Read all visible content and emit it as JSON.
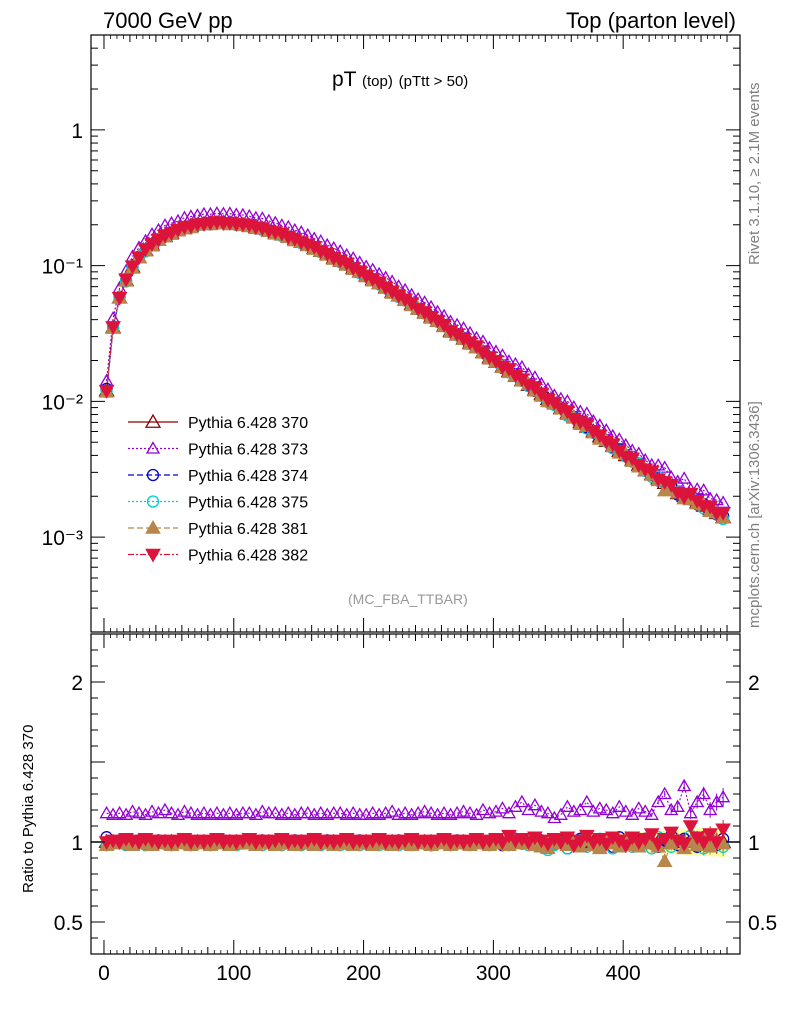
{
  "header": {
    "left": "7000 GeV pp",
    "right": "Top (parton level)"
  },
  "side_text": {
    "rivet": "Rivet 3.1.10, ≥ 2.1M events",
    "mcplots": "mcplots.cern.ch [arXiv:1306.3436]"
  },
  "plot_title": {
    "main": "pT",
    "sub1": "(top)",
    "sub2": "(pTtt > 50)"
  },
  "analysis_label": "(MC_FBA_TTBAR)",
  "ratio_ylabel": "Ratio to Pythia 6.428 370",
  "colors": {
    "s370": "#8b0000",
    "s373": "#9400d3",
    "s374": "#0000cd",
    "s375": "#00ced1",
    "s381": "#b8864b",
    "s382": "#dc143c",
    "band": "#ffff99"
  },
  "chart_data": [
    {
      "type": "scatter",
      "scale": "log-y",
      "xlim": [
        -10,
        490
      ],
      "ylim": [
        0.0002,
        5
      ],
      "yticks": [
        "1",
        "10⁻¹",
        "10⁻²",
        "10⁻³"
      ],
      "legend_position": "center-left",
      "series": [
        {
          "name": "Pythia 6.428 370",
          "marker": "open-triangle-up",
          "line": "solid"
        },
        {
          "name": "Pythia 6.428 373",
          "marker": "open-triangle-up",
          "line": "dotted"
        },
        {
          "name": "Pythia 6.428 374",
          "marker": "open-circle",
          "line": "dashed"
        },
        {
          "name": "Pythia 6.428 375",
          "marker": "open-circle",
          "line": "dotted"
        },
        {
          "name": "Pythia 6.428 381",
          "marker": "filled-triangle-up",
          "line": "dashed"
        },
        {
          "name": "Pythia 6.428 382",
          "marker": "filled-triangle-down",
          "line": "dashdot"
        }
      ],
      "x": [
        2,
        7,
        12,
        17,
        22,
        27,
        32,
        37,
        42,
        47,
        52,
        57,
        62,
        67,
        72,
        77,
        82,
        87,
        92,
        97,
        102,
        107,
        112,
        117,
        122,
        127,
        132,
        137,
        142,
        147,
        152,
        157,
        162,
        167,
        172,
        177,
        182,
        187,
        192,
        197,
        202,
        207,
        212,
        217,
        222,
        227,
        232,
        237,
        242,
        247,
        252,
        257,
        262,
        267,
        272,
        277,
        282,
        287,
        292,
        297,
        302,
        307,
        312,
        317,
        322,
        327,
        332,
        337,
        342,
        347,
        352,
        357,
        362,
        367,
        372,
        377,
        382,
        387,
        392,
        397,
        402,
        407,
        412,
        417,
        422,
        427,
        432,
        437,
        442,
        447,
        452,
        457,
        462,
        467,
        472,
        477
      ],
      "reference_values": [
        0.012,
        0.035,
        0.058,
        0.078,
        0.098,
        0.115,
        0.13,
        0.143,
        0.155,
        0.165,
        0.174,
        0.182,
        0.189,
        0.195,
        0.2,
        0.203,
        0.205,
        0.206,
        0.206,
        0.205,
        0.203,
        0.2,
        0.196,
        0.192,
        0.187,
        0.181,
        0.175,
        0.169,
        0.163,
        0.156,
        0.149,
        0.142,
        0.135,
        0.128,
        0.121,
        0.114,
        0.108,
        0.102,
        0.096,
        0.09,
        0.084,
        0.079,
        0.074,
        0.069,
        0.064,
        0.06,
        0.056,
        0.052,
        0.048,
        0.045,
        0.042,
        0.039,
        0.036,
        0.033,
        0.031,
        0.029,
        0.027,
        0.025,
        0.023,
        0.021,
        0.0195,
        0.018,
        0.0167,
        0.0154,
        0.0143,
        0.0132,
        0.0122,
        0.0113,
        0.0104,
        0.0096,
        0.0089,
        0.0082,
        0.0076,
        0.007,
        0.0065,
        0.006,
        0.0055,
        0.0051,
        0.0047,
        0.0043,
        0.004,
        0.0037,
        0.0034,
        0.0031,
        0.0029,
        0.0027,
        0.0025,
        0.0023,
        0.0021,
        0.002,
        0.0019,
        0.0018,
        0.0017,
        0.0016,
        0.0015,
        0.0014
      ]
    },
    {
      "type": "scatter",
      "ylabel": "Ratio to Pythia 6.428 370",
      "xlim": [
        -10,
        490
      ],
      "ylim": [
        0.3,
        2.3
      ],
      "xticks": [
        "0",
        "100",
        "200",
        "300",
        "400"
      ],
      "yticks": [
        "0.5",
        "1",
        "2"
      ],
      "reference_line": 1,
      "ratio_series": {
        "Pythia 6.428 373": [
          1.18,
          1.17,
          1.18,
          1.17,
          1.19,
          1.18,
          1.17,
          1.19,
          1.18,
          1.2,
          1.18,
          1.17,
          1.19,
          1.18,
          1.17,
          1.18,
          1.17,
          1.18,
          1.17,
          1.18,
          1.17,
          1.18,
          1.18,
          1.17,
          1.19,
          1.18,
          1.18,
          1.17,
          1.18,
          1.17,
          1.18,
          1.18,
          1.17,
          1.18,
          1.17,
          1.18,
          1.18,
          1.17,
          1.18,
          1.17,
          1.17,
          1.18,
          1.17,
          1.18,
          1.19,
          1.17,
          1.18,
          1.17,
          1.18,
          1.19,
          1.18,
          1.17,
          1.18,
          1.17,
          1.18,
          1.19,
          1.18,
          1.17,
          1.2,
          1.18,
          1.19,
          1.21,
          1.18,
          1.22,
          1.25,
          1.2,
          1.23,
          1.19,
          1.18,
          1.15,
          1.17,
          1.22,
          1.19,
          1.2,
          1.25,
          1.19,
          1.21,
          1.2,
          1.18,
          1.22,
          1.19,
          1.17,
          1.21,
          1.19,
          1.17,
          1.25,
          1.3,
          1.2,
          1.22,
          1.35,
          1.18,
          1.25,
          1.3,
          1.2,
          1.25,
          1.28
        ],
        "Pythia 6.428 374": [
          1.03,
          1.0,
          1.01,
          0.99,
          1.0,
          1.01,
          0.99,
          1.0,
          1.01,
          0.99,
          1.0,
          1.0,
          1.01,
          0.99,
          1.0,
          1.0,
          0.99,
          1.0,
          1.01,
          1.0,
          0.99,
          1.0,
          1.0,
          0.99,
          1.01,
          1.0,
          0.99,
          1.0,
          1.0,
          1.01,
          0.99,
          1.0,
          1.0,
          0.99,
          1.01,
          1.0,
          1.0,
          0.99,
          1.0,
          1.01,
          0.99,
          1.0,
          1.0,
          0.99,
          1.0,
          1.01,
          0.99,
          1.0,
          1.0,
          0.99,
          0.98,
          1.0,
          1.0,
          0.99,
          1.01,
          1.0,
          0.99,
          1.0,
          1.0,
          0.99,
          1.01,
          0.98,
          1.0,
          1.02,
          0.99,
          1.0,
          0.98,
          1.01,
          0.97,
          0.99,
          1.01,
          0.96,
          1.0,
          1.02,
          0.99,
          0.98,
          1.01,
          1.0,
          0.97,
          1.03,
          0.99,
          1.0,
          0.98,
          1.02,
          0.99,
          0.97,
          1.01,
          1.04,
          0.98,
          1.02,
          1.0,
          0.97,
          1.03,
          0.99,
          0.98,
          1.02
        ],
        "Pythia 6.428 375": [
          0.98,
          0.99,
          1.0,
          0.98,
          0.99,
          1.0,
          0.98,
          0.99,
          1.0,
          0.99,
          0.98,
          1.0,
          0.99,
          0.98,
          0.99,
          1.0,
          0.98,
          0.99,
          1.0,
          0.99,
          0.98,
          0.99,
          1.0,
          0.99,
          0.98,
          1.0,
          0.99,
          0.98,
          0.99,
          1.0,
          0.98,
          0.99,
          0.99,
          0.98,
          1.0,
          0.99,
          0.98,
          0.99,
          1.0,
          0.98,
          0.99,
          0.99,
          0.98,
          1.0,
          0.99,
          0.98,
          0.99,
          0.98,
          1.0,
          0.99,
          0.98,
          0.99,
          1.0,
          0.98,
          0.99,
          0.99,
          0.98,
          1.0,
          0.99,
          0.98,
          1.0,
          0.99,
          0.98,
          1.0,
          0.99,
          0.98,
          1.0,
          0.97,
          0.95,
          0.98,
          1.0,
          0.96,
          0.99,
          1.01,
          0.97,
          0.98,
          1.02,
          0.99,
          0.96,
          1.01,
          0.98,
          0.97,
          1.02,
          0.99,
          0.96,
          1.03,
          1.0,
          0.97,
          1.01,
          0.99,
          1.04,
          0.98,
          0.96,
          1.02,
          0.99,
          0.97
        ],
        "Pythia 6.428 381": [
          0.98,
          0.99,
          1.0,
          0.99,
          0.98,
          1.0,
          0.99,
          0.98,
          1.0,
          0.99,
          0.98,
          1.0,
          0.99,
          0.98,
          1.0,
          0.99,
          0.98,
          1.0,
          0.99,
          0.98,
          1.0,
          0.99,
          0.99,
          0.98,
          1.0,
          0.99,
          0.98,
          1.0,
          0.99,
          0.98,
          1.0,
          0.99,
          0.98,
          1.0,
          0.99,
          0.98,
          1.0,
          0.99,
          0.98,
          1.0,
          0.99,
          0.98,
          1.0,
          0.99,
          0.98,
          1.0,
          0.99,
          0.98,
          1.0,
          0.99,
          0.98,
          1.0,
          0.99,
          0.98,
          1.0,
          0.99,
          0.98,
          1.0,
          0.99,
          0.98,
          1.0,
          0.99,
          0.98,
          1.0,
          0.99,
          1.01,
          0.98,
          0.97,
          0.96,
          1.0,
          0.99,
          0.98,
          1.0,
          0.97,
          1.01,
          0.98,
          0.96,
          1.01,
          0.99,
          0.97,
          1.02,
          0.98,
          0.97,
          1.0,
          0.99,
          0.97,
          0.88,
          0.99,
          1.01,
          0.96,
          1.0,
          0.98,
          1.02,
          0.97,
          1.01,
          0.99
        ],
        "Pythia 6.428 382": [
          1.0,
          1.01,
          1.0,
          1.02,
          1.01,
          1.0,
          1.02,
          1.01,
          1.0,
          1.01,
          1.0,
          1.01,
          1.02,
          1.0,
          1.01,
          1.0,
          1.01,
          1.02,
          1.0,
          1.01,
          1.0,
          1.01,
          1.02,
          1.0,
          1.01,
          1.0,
          1.01,
          1.02,
          1.0,
          1.01,
          1.0,
          1.01,
          1.02,
          1.0,
          1.01,
          1.0,
          1.01,
          1.02,
          1.0,
          1.01,
          1.0,
          1.01,
          1.02,
          1.0,
          1.01,
          1.0,
          1.01,
          1.02,
          1.0,
          1.01,
          1.0,
          1.01,
          1.02,
          1.0,
          1.01,
          1.0,
          1.01,
          1.02,
          1.0,
          1.01,
          1.02,
          1.0,
          1.04,
          1.01,
          1.02,
          1.0,
          1.03,
          1.01,
          0.99,
          1.02,
          1.0,
          1.03,
          0.98,
          1.01,
          1.04,
          1.0,
          1.02,
          0.99,
          1.03,
          1.01,
          0.98,
          1.03,
          1.0,
          1.02,
          1.05,
          0.99,
          1.02,
          1.06,
          1.01,
          0.99,
          1.1,
          1.03,
          1.0,
          1.05,
          1.0,
          1.08
        ]
      }
    }
  ]
}
